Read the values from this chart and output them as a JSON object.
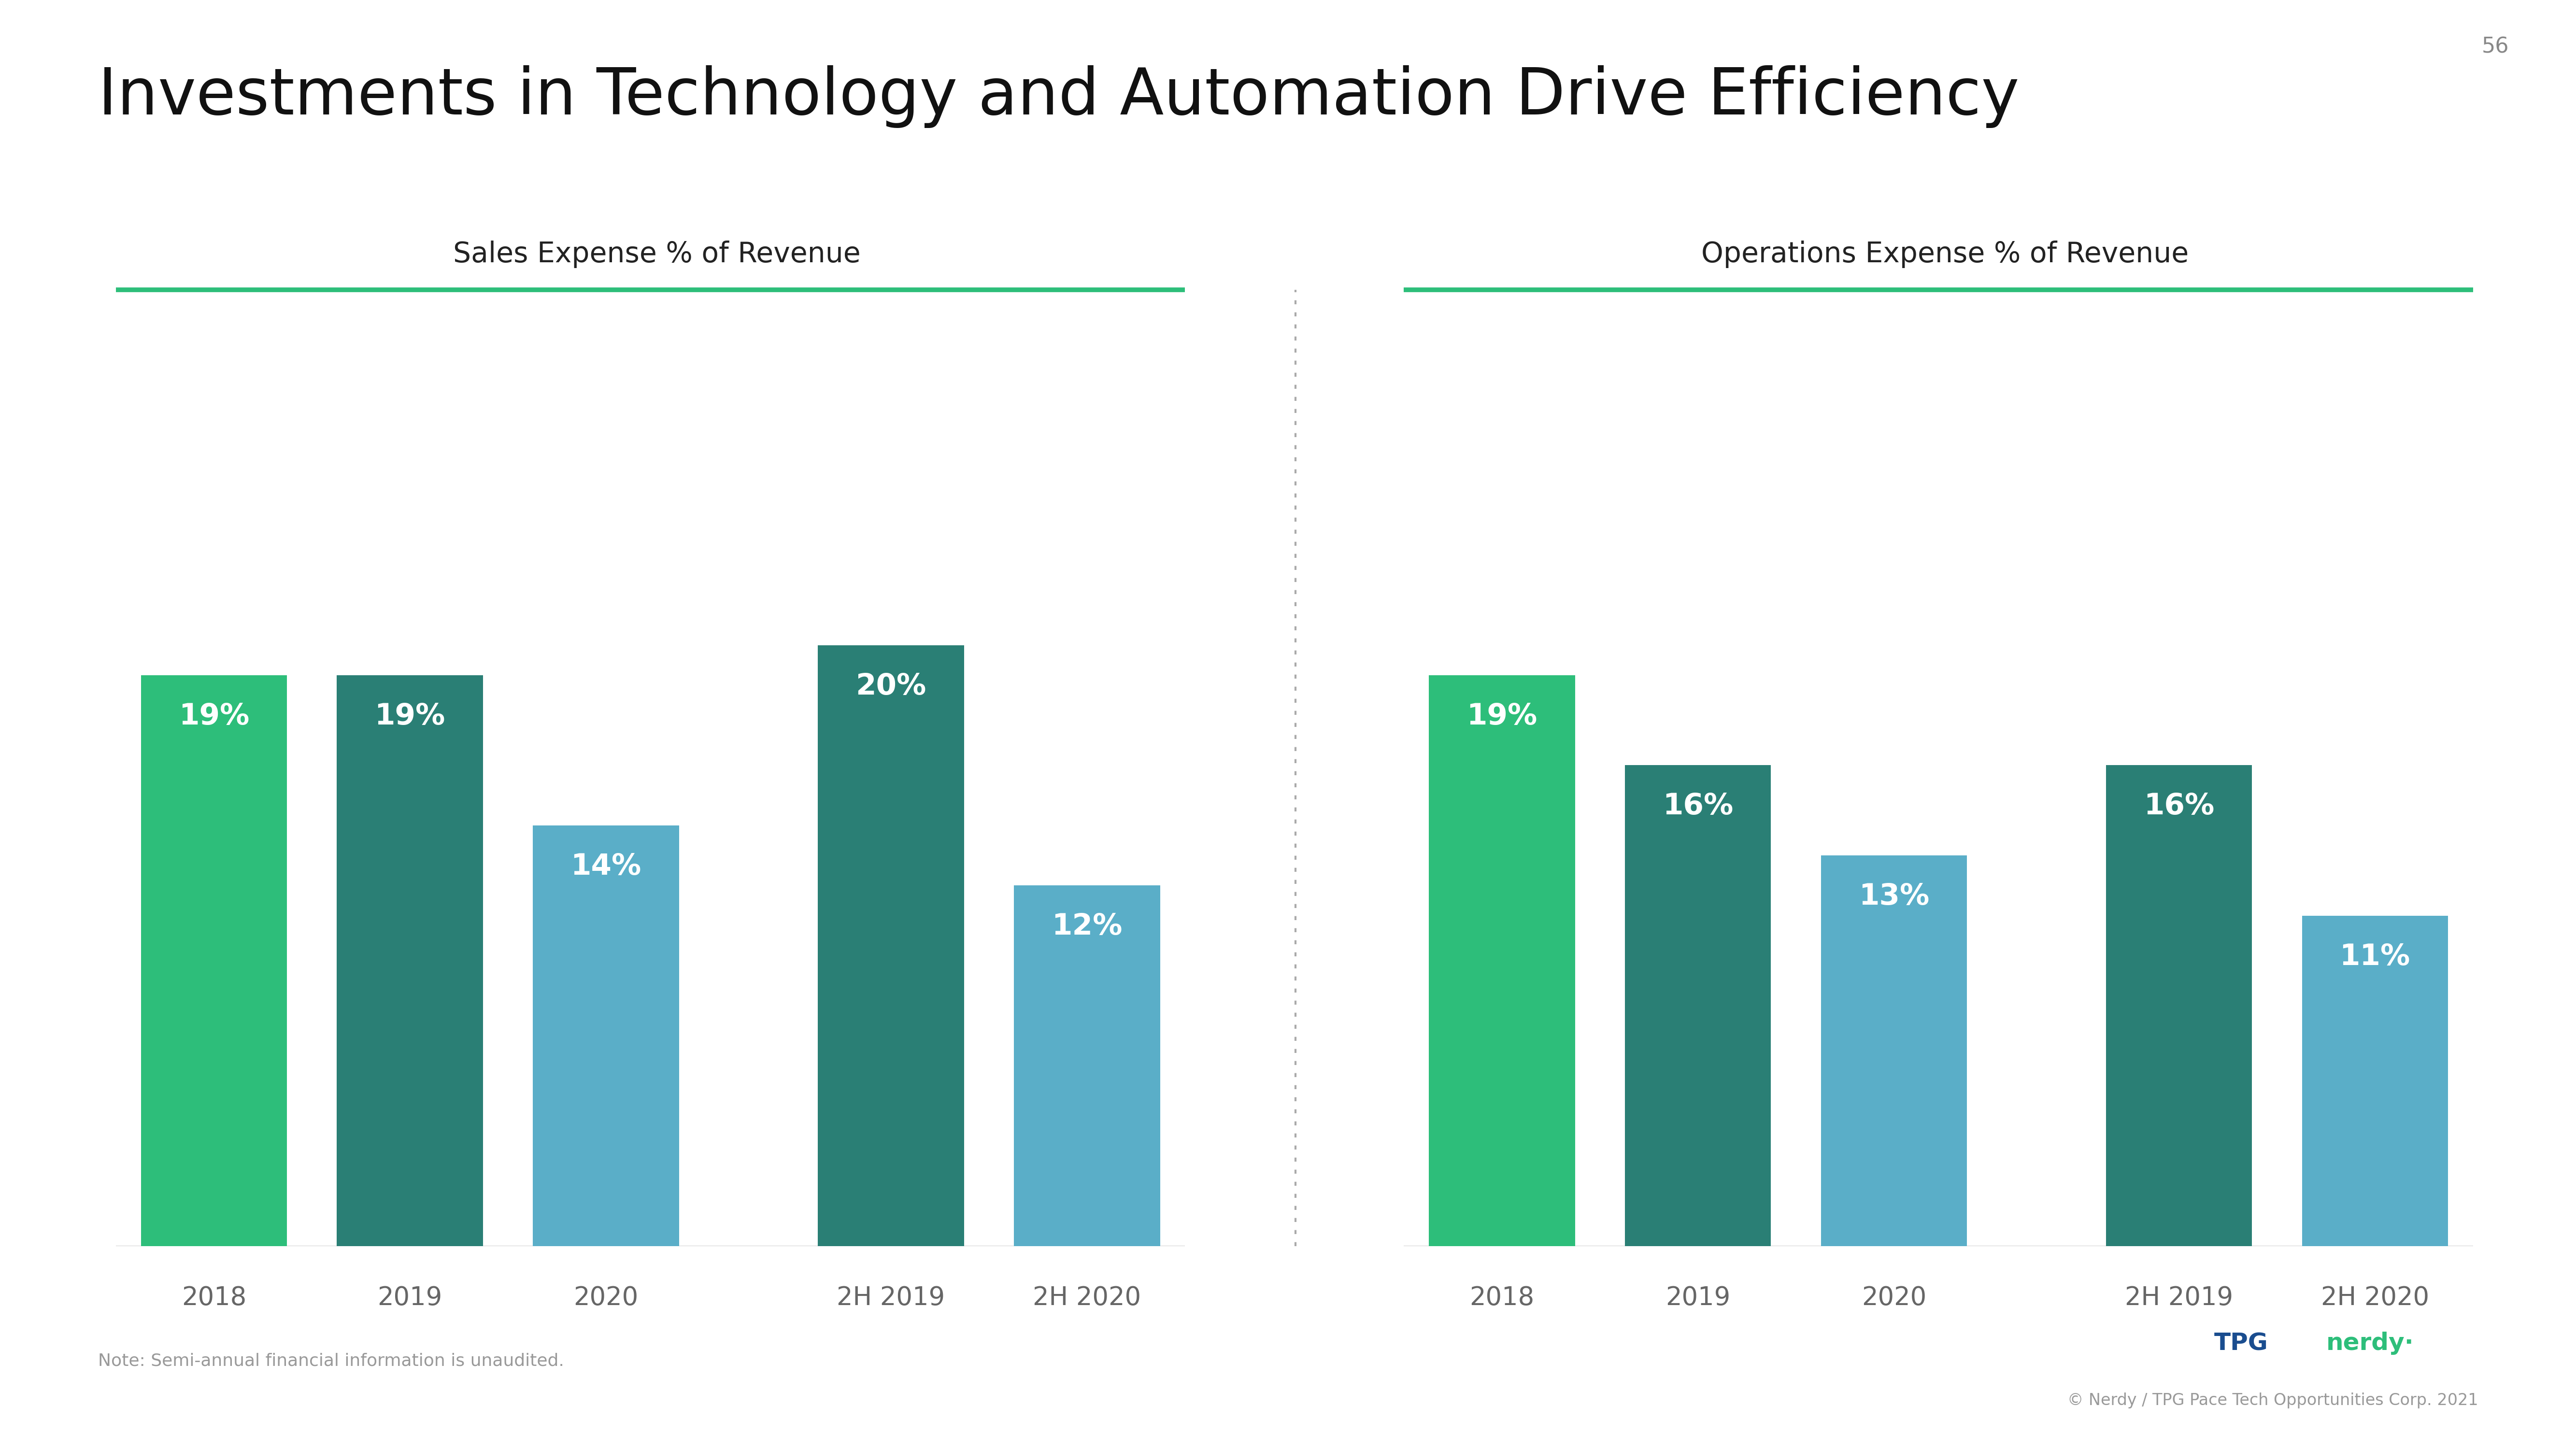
{
  "title": "Investments in Technology and Automation Drive Efficiency",
  "page_number": "56",
  "left_chart_title": "Sales Expense % of Revenue",
  "right_chart_title": "Operations Expense % of Revenue",
  "left_values": [
    19,
    19,
    14,
    20,
    12
  ],
  "right_values": [
    19,
    16,
    13,
    16,
    11
  ],
  "left_colors": [
    "#2dbe7a",
    "#2a7f75",
    "#5aaec8",
    "#2a7f75",
    "#5aaec8"
  ],
  "right_colors": [
    "#2dbe7a",
    "#2a7f75",
    "#5aaec8",
    "#2a7f75",
    "#5aaec8"
  ],
  "bar_labels_left": [
    "19%",
    "19%",
    "14%",
    "20%",
    "12%"
  ],
  "bar_labels_right": [
    "19%",
    "16%",
    "13%",
    "16%",
    "11%"
  ],
  "x_labels_left": [
    "2018",
    "2019",
    "2020",
    "2H 2019",
    "2H 2020"
  ],
  "x_labels_right": [
    "2018",
    "2019",
    "2020",
    "2H 2019",
    "2H 2020"
  ],
  "note": "Note: Semi-annual financial information is unaudited.",
  "footer": "© Nerdy / TPG Pace Tech Opportunities Corp. 2021",
  "green_line_color": "#2dbe7a",
  "background_color": "#ffffff",
  "title_fontsize": 96,
  "subtitle_fontsize": 42,
  "bar_label_fontsize": 44,
  "axis_label_fontsize": 38,
  "note_fontsize": 26,
  "footer_fontsize": 24
}
